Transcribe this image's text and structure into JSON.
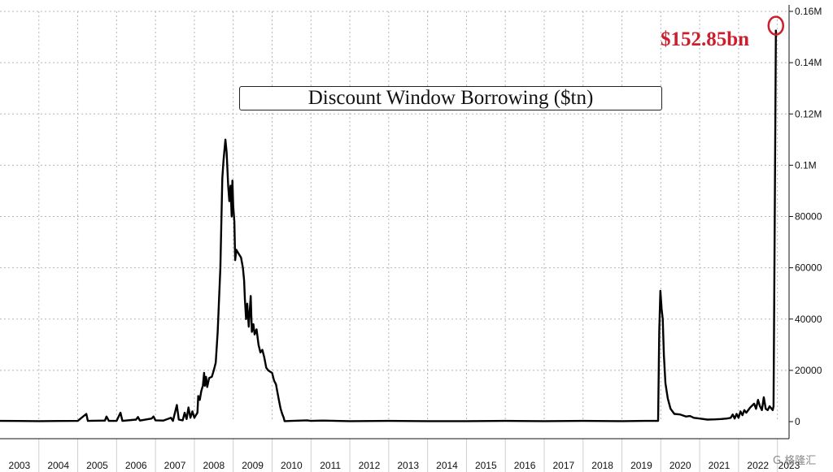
{
  "chart_data": {
    "type": "line",
    "title": "Discount Window Borrowing ($tn)",
    "xlabel": "",
    "ylabel": "",
    "x_range": [
      2003.0,
      2023.3
    ],
    "ylim": [
      0,
      160000
    ],
    "y_ticks": [
      {
        "value": 0,
        "label": "0"
      },
      {
        "value": 20000,
        "label": "20000"
      },
      {
        "value": 40000,
        "label": "40000"
      },
      {
        "value": 60000,
        "label": "60000"
      },
      {
        "value": 80000,
        "label": "80000"
      },
      {
        "value": 100000,
        "label": "0.1M"
      },
      {
        "value": 120000,
        "label": "0.12M"
      },
      {
        "value": 140000,
        "label": "0.14M"
      },
      {
        "value": 160000,
        "label": "0.16M"
      }
    ],
    "x_ticks": [
      {
        "value": 2003.5,
        "label": "2003"
      },
      {
        "value": 2004.5,
        "label": "2004"
      },
      {
        "value": 2005.5,
        "label": "2005"
      },
      {
        "value": 2006.5,
        "label": "2006"
      },
      {
        "value": 2007.5,
        "label": "2007"
      },
      {
        "value": 2008.5,
        "label": "2008"
      },
      {
        "value": 2009.5,
        "label": "2009"
      },
      {
        "value": 2010.5,
        "label": "2010"
      },
      {
        "value": 2011.5,
        "label": "2011"
      },
      {
        "value": 2012.5,
        "label": "2012"
      },
      {
        "value": 2013.5,
        "label": "2013"
      },
      {
        "value": 2014.5,
        "label": "2014"
      },
      {
        "value": 2015.5,
        "label": "2015"
      },
      {
        "value": 2016.5,
        "label": "2016"
      },
      {
        "value": 2017.5,
        "label": "2017"
      },
      {
        "value": 2018.5,
        "label": "2018"
      },
      {
        "value": 2019.5,
        "label": "2019"
      },
      {
        "value": 2020.5,
        "label": "2020"
      },
      {
        "value": 2021.5,
        "label": "2021"
      },
      {
        "value": 2022.5,
        "label": "2022"
      },
      {
        "value": 2023.3,
        "label": "2023"
      }
    ],
    "grid": true,
    "y_axis_side": "right",
    "series": [
      {
        "color": "#000000",
        "points": [
          [
            2003.0,
            300
          ],
          [
            2003.5,
            250
          ],
          [
            2004.0,
            200
          ],
          [
            2004.5,
            250
          ],
          [
            2005.0,
            300
          ],
          [
            2005.22,
            3000
          ],
          [
            2005.26,
            300
          ],
          [
            2005.7,
            400
          ],
          [
            2005.74,
            2000
          ],
          [
            2005.8,
            300
          ],
          [
            2006.0,
            300
          ],
          [
            2006.1,
            3500
          ],
          [
            2006.15,
            300
          ],
          [
            2006.5,
            800
          ],
          [
            2006.55,
            1800
          ],
          [
            2006.6,
            400
          ],
          [
            2006.9,
            1200
          ],
          [
            2006.95,
            2000
          ],
          [
            2007.0,
            500
          ],
          [
            2007.2,
            400
          ],
          [
            2007.4,
            1500
          ],
          [
            2007.45,
            300
          ],
          [
            2007.55,
            6500
          ],
          [
            2007.6,
            800
          ],
          [
            2007.7,
            500
          ],
          [
            2007.75,
            3500
          ],
          [
            2007.8,
            1000
          ],
          [
            2007.85,
            5500
          ],
          [
            2007.9,
            1500
          ],
          [
            2007.95,
            4000
          ],
          [
            2008.0,
            1500
          ],
          [
            2008.08,
            3500
          ],
          [
            2008.1,
            10000
          ],
          [
            2008.14,
            8500
          ],
          [
            2008.18,
            12000
          ],
          [
            2008.22,
            14000
          ],
          [
            2008.25,
            19000
          ],
          [
            2008.27,
            14000
          ],
          [
            2008.3,
            17500
          ],
          [
            2008.33,
            13500
          ],
          [
            2008.38,
            17000
          ],
          [
            2008.45,
            17500
          ],
          [
            2008.5,
            20000
          ],
          [
            2008.55,
            23000
          ],
          [
            2008.6,
            35000
          ],
          [
            2008.67,
            60000
          ],
          [
            2008.72,
            95000
          ],
          [
            2008.75,
            102000
          ],
          [
            2008.8,
            110000
          ],
          [
            2008.83,
            105000
          ],
          [
            2008.87,
            92000
          ],
          [
            2008.9,
            86000
          ],
          [
            2008.93,
            92000
          ],
          [
            2008.96,
            80000
          ],
          [
            2008.98,
            94000
          ],
          [
            2009.0,
            84000
          ],
          [
            2009.03,
            78000
          ],
          [
            2009.05,
            63000
          ],
          [
            2009.08,
            67000
          ],
          [
            2009.12,
            66000
          ],
          [
            2009.2,
            64000
          ],
          [
            2009.25,
            60000
          ],
          [
            2009.28,
            55000
          ],
          [
            2009.3,
            48000
          ],
          [
            2009.33,
            40000
          ],
          [
            2009.36,
            46000
          ],
          [
            2009.4,
            37000
          ],
          [
            2009.45,
            49000
          ],
          [
            2009.48,
            35000
          ],
          [
            2009.52,
            38000
          ],
          [
            2009.55,
            34000
          ],
          [
            2009.6,
            36000
          ],
          [
            2009.65,
            30000
          ],
          [
            2009.7,
            27000
          ],
          [
            2009.75,
            28000
          ],
          [
            2009.8,
            25000
          ],
          [
            2009.85,
            21000
          ],
          [
            2009.9,
            20000
          ],
          [
            2009.95,
            19500
          ],
          [
            2010.0,
            19000
          ],
          [
            2010.05,
            16000
          ],
          [
            2010.1,
            14500
          ],
          [
            2010.13,
            12000
          ],
          [
            2010.18,
            8000
          ],
          [
            2010.22,
            5000
          ],
          [
            2010.26,
            3000
          ],
          [
            2010.3,
            1500
          ],
          [
            2010.32,
            200
          ],
          [
            2010.5,
            300
          ],
          [
            2010.9,
            500
          ],
          [
            2011.0,
            300
          ],
          [
            2011.3,
            400
          ],
          [
            2012.0,
            200
          ],
          [
            2013.0,
            300
          ],
          [
            2014.0,
            200
          ],
          [
            2015.0,
            200
          ],
          [
            2016.0,
            300
          ],
          [
            2017.0,
            200
          ],
          [
            2018.0,
            300
          ],
          [
            2019.0,
            200
          ],
          [
            2019.6,
            300
          ],
          [
            2019.93,
            300
          ],
          [
            2019.96,
            35000
          ],
          [
            2019.99,
            51000
          ],
          [
            2020.02,
            44000
          ],
          [
            2020.05,
            40000
          ],
          [
            2020.08,
            26000
          ],
          [
            2020.12,
            15000
          ],
          [
            2020.18,
            9000
          ],
          [
            2020.25,
            5000
          ],
          [
            2020.35,
            3000
          ],
          [
            2020.5,
            2800
          ],
          [
            2020.65,
            2000
          ],
          [
            2020.75,
            2200
          ],
          [
            2020.85,
            1500
          ],
          [
            2021.0,
            1200
          ],
          [
            2021.2,
            800
          ],
          [
            2021.4,
            900
          ],
          [
            2021.55,
            1000
          ],
          [
            2021.7,
            1200
          ],
          [
            2021.8,
            1500
          ],
          [
            2021.85,
            2800
          ],
          [
            2021.9,
            1200
          ],
          [
            2021.95,
            3000
          ],
          [
            2022.0,
            1500
          ],
          [
            2022.05,
            4000
          ],
          [
            2022.1,
            2500
          ],
          [
            2022.15,
            4500
          ],
          [
            2022.2,
            3500
          ],
          [
            2022.3,
            5500
          ],
          [
            2022.4,
            7000
          ],
          [
            2022.45,
            5000
          ],
          [
            2022.5,
            8500
          ],
          [
            2022.55,
            6000
          ],
          [
            2022.6,
            4500
          ],
          [
            2022.65,
            9500
          ],
          [
            2022.7,
            5000
          ],
          [
            2022.75,
            4500
          ],
          [
            2022.8,
            6000
          ],
          [
            2022.85,
            5000
          ],
          [
            2022.88,
            4500
          ],
          [
            2022.9,
            6000
          ],
          [
            2022.93,
            75000
          ],
          [
            2022.96,
            152850
          ]
        ]
      }
    ],
    "annotations": [
      {
        "text": "$152.85bn",
        "x": 2022.96,
        "y": 152850,
        "color": "#cc1f2d",
        "marker": "circle"
      }
    ]
  },
  "watermark": "G 格隆汇"
}
